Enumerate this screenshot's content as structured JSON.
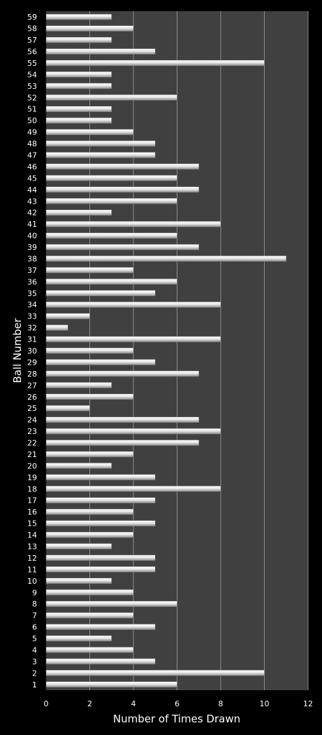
{
  "chart_data": {
    "type": "bar",
    "orientation": "horizontal",
    "xlabel": "Number of Times Drawn",
    "ylabel": "Ball Number",
    "xlim": [
      0,
      12
    ],
    "xticks": [
      "0",
      "2",
      "4",
      "6",
      "8",
      "10",
      "12"
    ],
    "grid": true,
    "legend": "none",
    "colors": {
      "background": "#000000",
      "plot_area": "#404040",
      "gridline": "#8c8c8c",
      "bar": "#e6e6e6",
      "text": "#ffffff"
    },
    "categories": [
      "1",
      "2",
      "3",
      "4",
      "5",
      "6",
      "7",
      "8",
      "9",
      "10",
      "11",
      "12",
      "13",
      "14",
      "15",
      "16",
      "17",
      "18",
      "19",
      "20",
      "21",
      "22",
      "23",
      "24",
      "25",
      "26",
      "27",
      "28",
      "29",
      "30",
      "31",
      "32",
      "33",
      "34",
      "35",
      "36",
      "37",
      "38",
      "39",
      "40",
      "41",
      "42",
      "43",
      "44",
      "45",
      "46",
      "47",
      "48",
      "49",
      "50",
      "51",
      "52",
      "53",
      "54",
      "55",
      "56",
      "57",
      "58",
      "59"
    ],
    "values": [
      6,
      10,
      5,
      4,
      3,
      5,
      4,
      6,
      4,
      3,
      5,
      5,
      3,
      4,
      5,
      4,
      5,
      8,
      5,
      3,
      4,
      7,
      8,
      7,
      2,
      4,
      3,
      7,
      5,
      4,
      8,
      1,
      2,
      8,
      5,
      6,
      4,
      11,
      7,
      6,
      8,
      3,
      6,
      7,
      6,
      7,
      5,
      5,
      4,
      3,
      3,
      6,
      3,
      3,
      10,
      5,
      3,
      4,
      3
    ]
  }
}
